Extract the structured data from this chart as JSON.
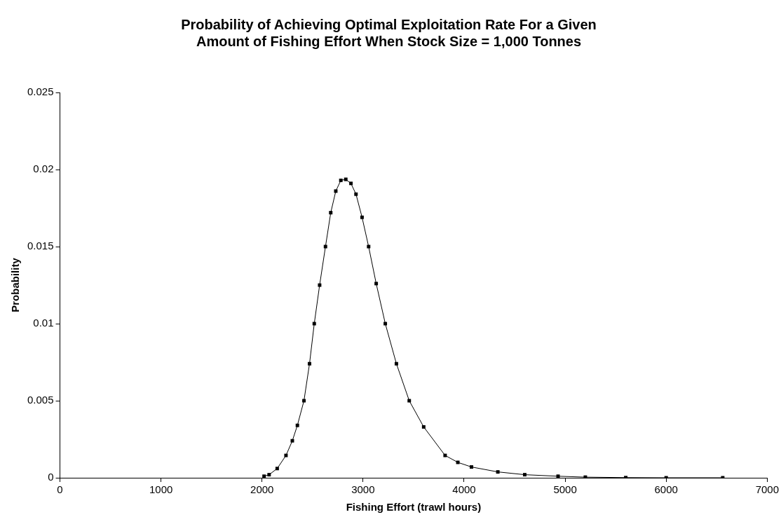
{
  "chart_data": {
    "type": "line",
    "title": "Probability of Achieving Optimal Exploitation Rate For a Given Amount of Fishing Effort When Stock Size = 1,000 Tonnes",
    "xlabel": "Fishing Effort (trawl hours)",
    "ylabel": "Probability",
    "x": [
      2020,
      2070,
      2150,
      2237,
      2300,
      2350,
      2415,
      2470,
      2517,
      2570,
      2628,
      2680,
      2730,
      2780,
      2829,
      2880,
      2930,
      2990,
      3055,
      3130,
      3220,
      3330,
      3457,
      3600,
      3812,
      3938,
      4073,
      4334,
      4600,
      4930,
      5200,
      5600,
      6000,
      6560
    ],
    "series": [
      {
        "color": "#000000",
        "values": [
          0.0001,
          0.0002,
          0.0006,
          0.00145,
          0.0024,
          0.0034,
          0.005,
          0.0074,
          0.01,
          0.0125,
          0.015,
          0.0172,
          0.0186,
          0.0193,
          0.01936,
          0.0191,
          0.0184,
          0.0169,
          0.015,
          0.0126,
          0.01,
          0.0074,
          0.005,
          0.0033,
          0.00145,
          0.001,
          0.0007,
          0.00038,
          0.0002,
          0.0001,
          4e-05,
          1e-05,
          0,
          0
        ]
      }
    ],
    "xlim": [
      0,
      7000
    ],
    "xticks": [
      0,
      1000,
      2000,
      3000,
      4000,
      5000,
      6000,
      7000
    ],
    "ylim": [
      0,
      0.025
    ],
    "yticks": [
      0,
      0.005,
      0.01,
      0.015,
      0.02,
      0.025
    ],
    "grid": false,
    "legend": false,
    "marker": "square",
    "line_style": "solid"
  }
}
